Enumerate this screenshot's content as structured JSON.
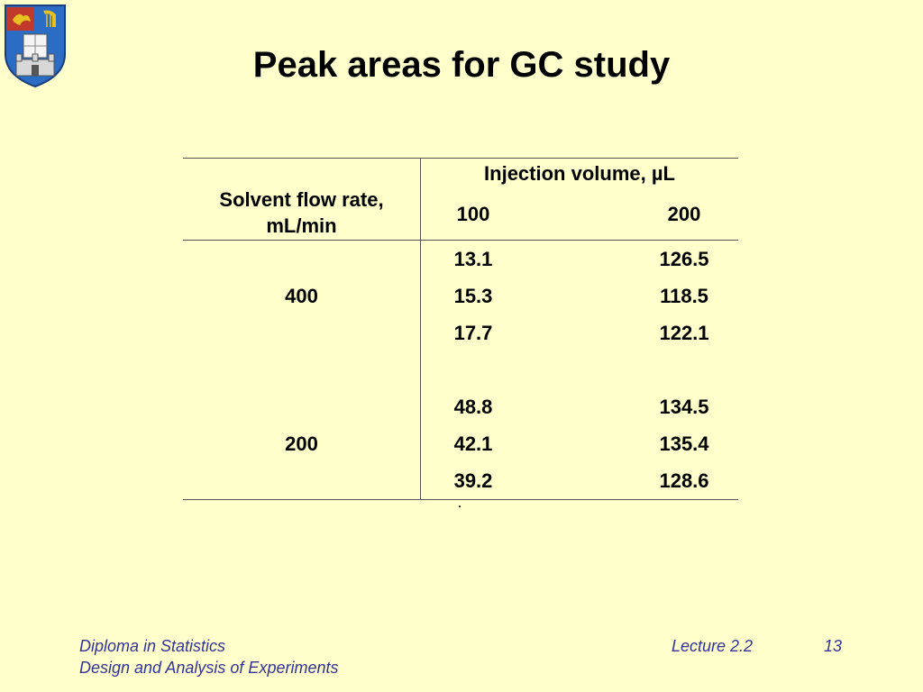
{
  "slide": {
    "title": "Peak areas for GC study"
  },
  "table": {
    "row_header_line1": "Solvent flow rate,",
    "row_header_line2": "mL/min",
    "col_group_header": "Injection volume, µL",
    "col_headers": [
      "100",
      "200"
    ],
    "groups": [
      {
        "label": "400",
        "col1": [
          "13.1",
          "15.3",
          "17.7"
        ],
        "col2": [
          "126.5",
          "118.5",
          "122.1"
        ]
      },
      {
        "label": "200",
        "col1": [
          "48.8",
          "42.1",
          "39.2"
        ],
        "col2": [
          "134.5",
          "135.4",
          "128.6"
        ]
      }
    ],
    "note": "."
  },
  "footer": {
    "left_line1": "Diploma in Statistics",
    "left_line2": "Design and Analysis of Experiments",
    "lecture": "Lecture 2.2",
    "page": "13"
  },
  "colors": {
    "background": "#ffffcc",
    "footer_text": "#333399",
    "crest_blue": "#2b6cc4",
    "crest_gold": "#e8c020"
  },
  "icons": {
    "crest": "university-crest-icon"
  }
}
